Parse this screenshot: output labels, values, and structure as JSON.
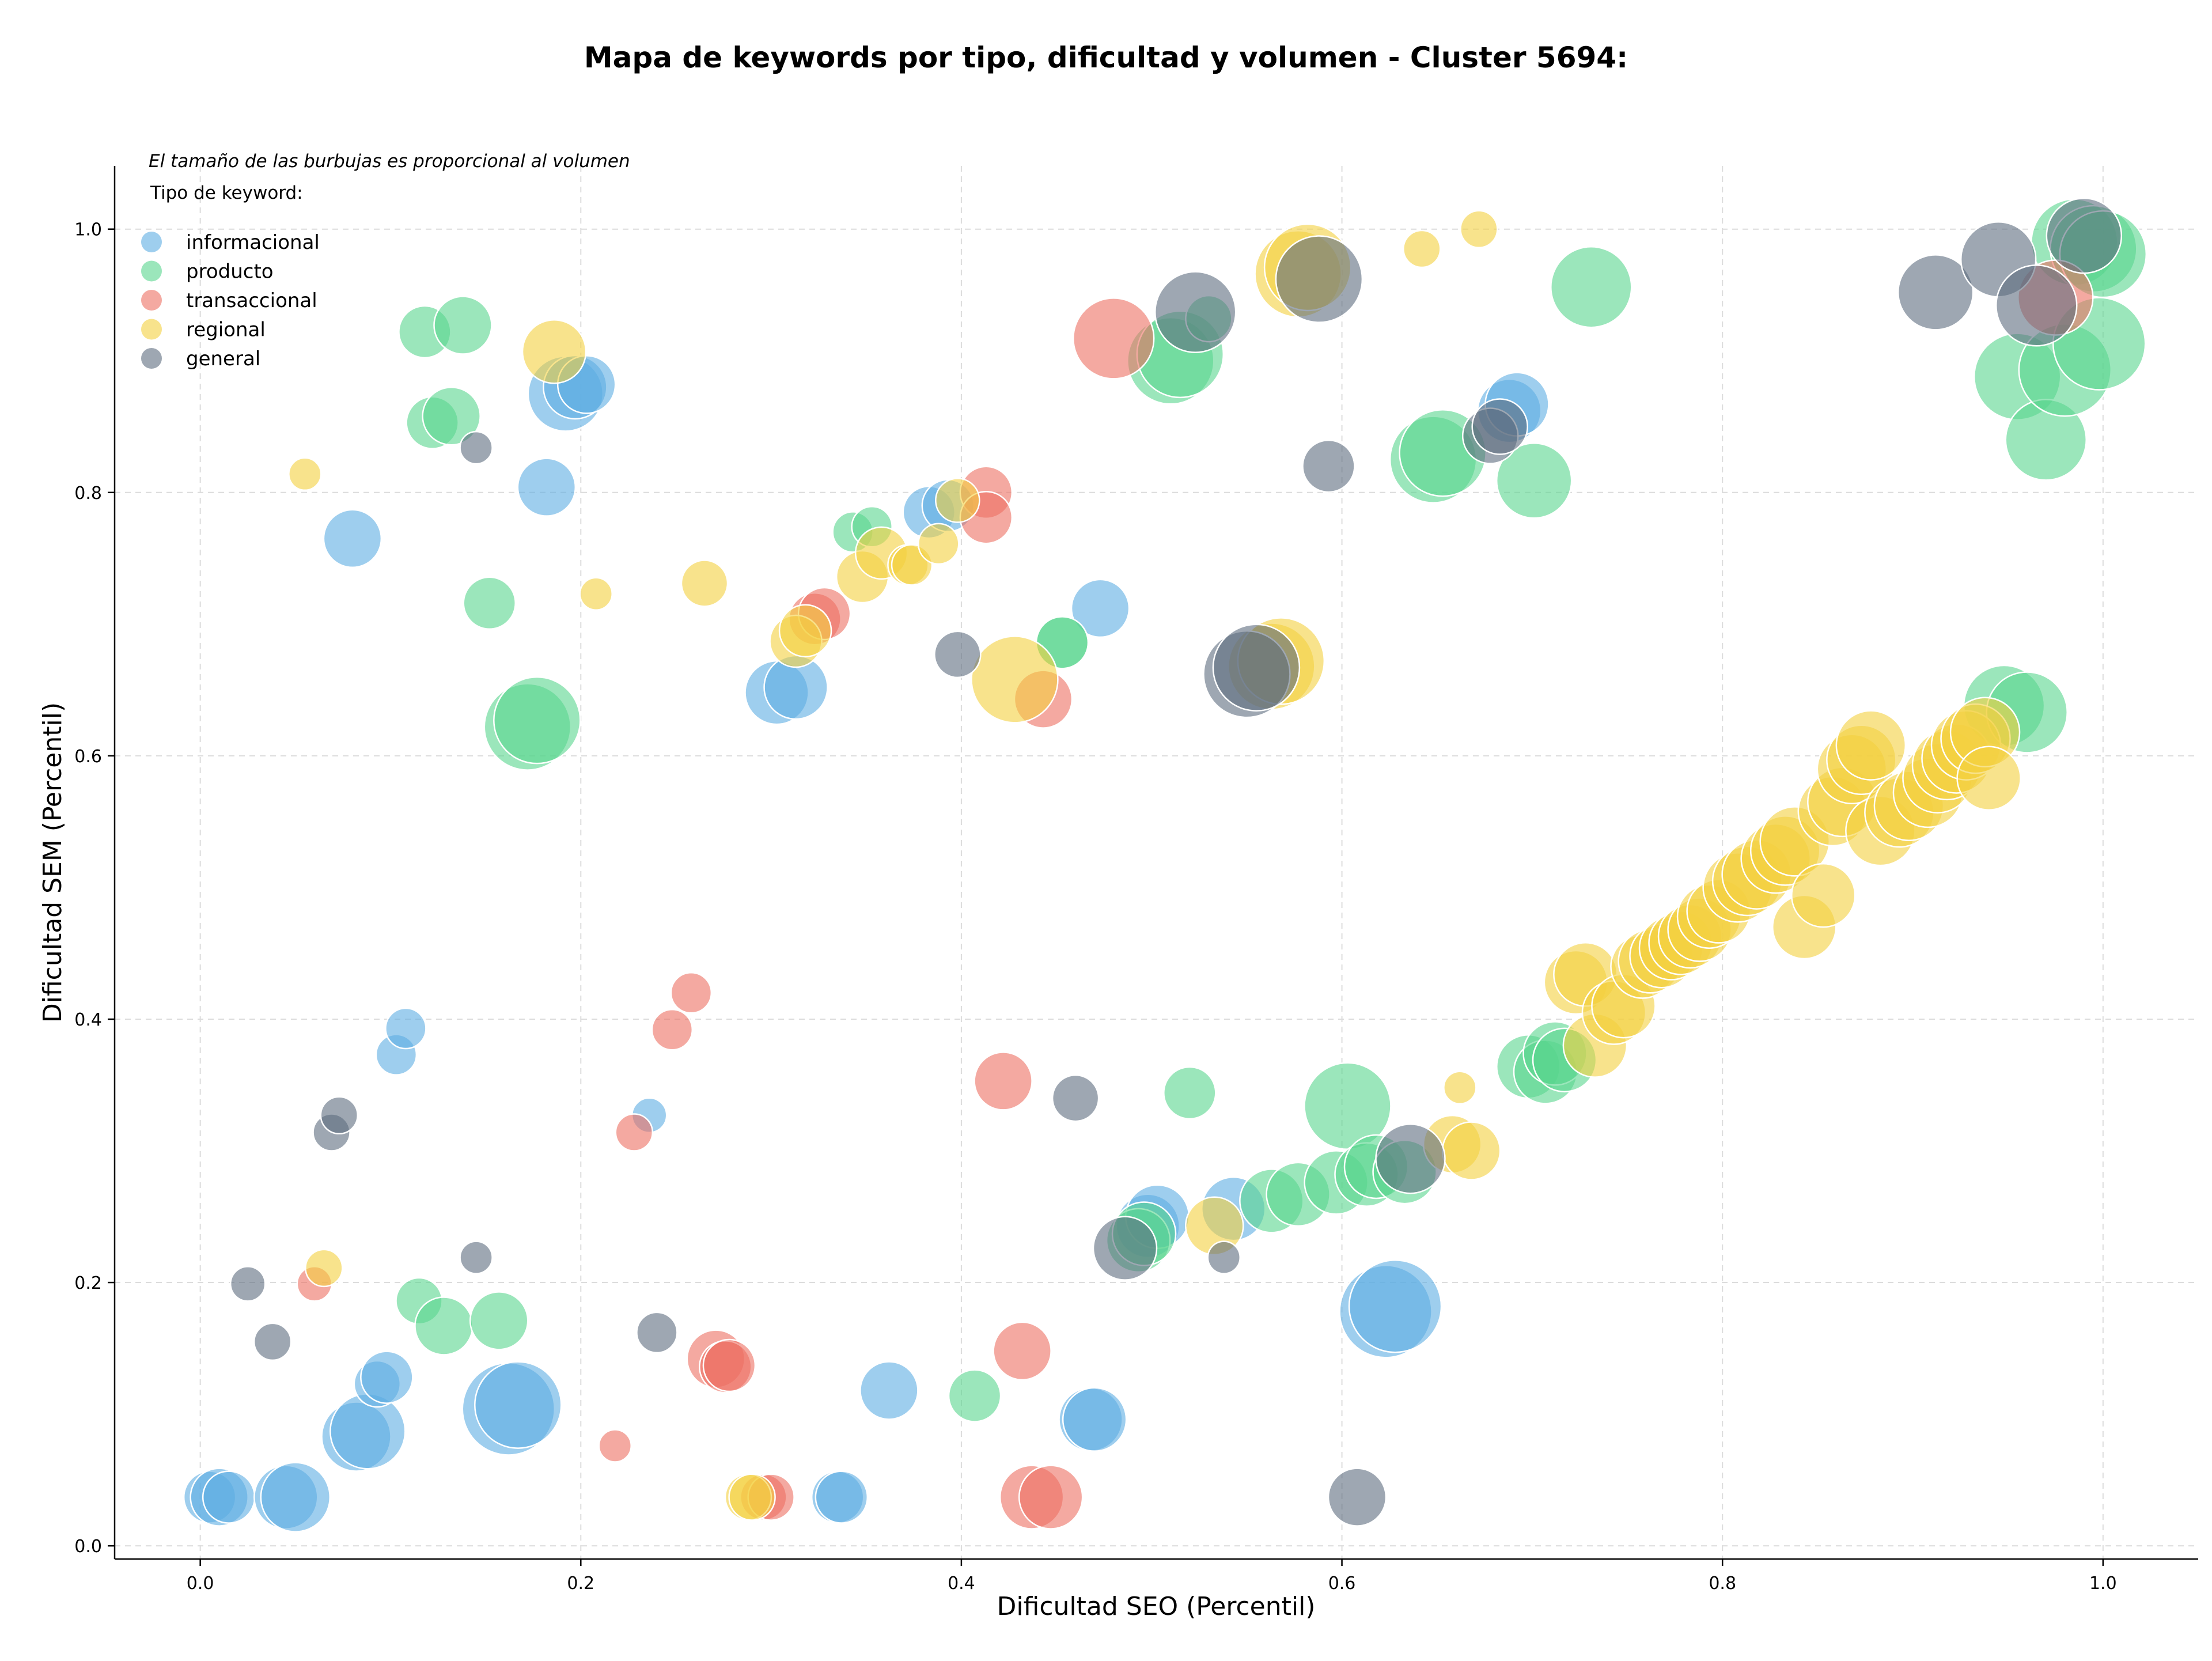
{
  "chart_data": {
    "type": "scatter",
    "title": "Mapa de keywords por tipo, dificultad y volumen - Cluster 5694:",
    "xlabel": "Dificultad SEO (Percentil)",
    "ylabel": "Dificultad SEM (Percentil)",
    "xlim": [
      -0.045,
      1.05
    ],
    "ylim": [
      -0.01,
      1.048
    ],
    "xticks": [
      "0.0",
      "0.2",
      "0.4",
      "0.6",
      "0.8",
      "1.0"
    ],
    "yticks": [
      "0.0",
      "0.2",
      "0.4",
      "0.6",
      "0.8",
      "1.0"
    ],
    "xtick_values": [
      0,
      0.2,
      0.4,
      0.6,
      0.8,
      1.0
    ],
    "ytick_values": [
      0,
      0.2,
      0.4,
      0.6,
      0.8,
      1.0
    ],
    "grid": true,
    "note": "El tamaño de las burbujas es proporcional al volumen",
    "legend_title": "Tipo de keyword:",
    "legend_position": "top-left",
    "size_encoding": "volumen (relative)",
    "series": [
      {
        "name": "informacional",
        "color": "#5dade2",
        "points": [
          [
            0.005,
            0.037,
            45
          ],
          [
            0.01,
            0.037,
            50
          ],
          [
            0.015,
            0.037,
            45
          ],
          [
            0.045,
            0.037,
            55
          ],
          [
            0.05,
            0.037,
            60
          ],
          [
            0.082,
            0.083,
            60
          ],
          [
            0.088,
            0.087,
            65
          ],
          [
            0.093,
            0.123,
            40
          ],
          [
            0.098,
            0.128,
            45
          ],
          [
            0.103,
            0.373,
            35
          ],
          [
            0.108,
            0.393,
            35
          ],
          [
            0.08,
            0.765,
            50
          ],
          [
            0.182,
            0.804,
            50
          ],
          [
            0.192,
            0.875,
            65
          ],
          [
            0.197,
            0.88,
            55
          ],
          [
            0.203,
            0.882,
            50
          ],
          [
            0.162,
            0.104,
            80
          ],
          [
            0.167,
            0.107,
            75
          ],
          [
            0.236,
            0.327,
            30
          ],
          [
            0.303,
            0.648,
            55
          ],
          [
            0.313,
            0.652,
            55
          ],
          [
            0.335,
            0.037,
            45
          ],
          [
            0.337,
            0.037,
            45
          ],
          [
            0.362,
            0.118,
            50
          ],
          [
            0.383,
            0.785,
            45
          ],
          [
            0.393,
            0.79,
            45
          ],
          [
            0.473,
            0.712,
            50
          ],
          [
            0.468,
            0.096,
            55
          ],
          [
            0.47,
            0.096,
            55
          ],
          [
            0.498,
            0.243,
            55
          ],
          [
            0.503,
            0.25,
            55
          ],
          [
            0.543,
            0.256,
            55
          ],
          [
            0.623,
            0.178,
            80
          ],
          [
            0.628,
            0.182,
            80
          ],
          [
            0.688,
            0.862,
            55
          ],
          [
            0.692,
            0.867,
            55
          ]
        ]
      },
      {
        "name": "producto",
        "color": "#58d68d",
        "points": [
          [
            0.118,
            0.922,
            45
          ],
          [
            0.138,
            0.927,
            50
          ],
          [
            0.122,
            0.853,
            45
          ],
          [
            0.132,
            0.858,
            50
          ],
          [
            0.152,
            0.716,
            45
          ],
          [
            0.172,
            0.622,
            75
          ],
          [
            0.177,
            0.627,
            75
          ],
          [
            0.115,
            0.186,
            40
          ],
          [
            0.128,
            0.167,
            50
          ],
          [
            0.157,
            0.171,
            50
          ],
          [
            0.343,
            0.77,
            35
          ],
          [
            0.353,
            0.774,
            35
          ],
          [
            0.407,
            0.114,
            45
          ],
          [
            0.453,
            0.686,
            45
          ],
          [
            0.453,
            0.686,
            45
          ],
          [
            0.51,
            0.9,
            75
          ],
          [
            0.515,
            0.905,
            75
          ],
          [
            0.52,
            0.344,
            45
          ],
          [
            0.53,
            0.932,
            40
          ],
          [
            0.563,
            0.262,
            55
          ],
          [
            0.577,
            0.267,
            55
          ],
          [
            0.597,
            0.276,
            55
          ],
          [
            0.603,
            0.334,
            75
          ],
          [
            0.613,
            0.282,
            55
          ],
          [
            0.618,
            0.288,
            55
          ],
          [
            0.633,
            0.284,
            55
          ],
          [
            0.648,
            0.825,
            75
          ],
          [
            0.653,
            0.83,
            75
          ],
          [
            0.698,
            0.364,
            55
          ],
          [
            0.707,
            0.36,
            55
          ],
          [
            0.712,
            0.374,
            55
          ],
          [
            0.717,
            0.369,
            55
          ],
          [
            0.701,
            0.809,
            65
          ],
          [
            0.731,
            0.956,
            70
          ],
          [
            0.493,
            0.232,
            55
          ],
          [
            0.496,
            0.237,
            55
          ],
          [
            0.955,
            0.888,
            75
          ],
          [
            0.97,
            0.84,
            70
          ],
          [
            0.98,
            0.893,
            80
          ],
          [
            0.985,
            0.99,
            75
          ],
          [
            0.995,
            0.985,
            75
          ],
          [
            1.0,
            0.981,
            75
          ],
          [
            0.998,
            0.913,
            80
          ],
          [
            0.948,
            0.638,
            70
          ],
          [
            0.96,
            0.633,
            70
          ]
        ]
      },
      {
        "name": "transaccional",
        "color": "#ec7063",
        "points": [
          [
            0.06,
            0.199,
            30
          ],
          [
            0.218,
            0.076,
            28
          ],
          [
            0.228,
            0.314,
            32
          ],
          [
            0.248,
            0.392,
            35
          ],
          [
            0.258,
            0.42,
            35
          ],
          [
            0.271,
            0.142,
            50
          ],
          [
            0.276,
            0.136,
            45
          ],
          [
            0.278,
            0.137,
            45
          ],
          [
            0.296,
            0.037,
            40
          ],
          [
            0.3,
            0.037,
            40
          ],
          [
            0.323,
            0.704,
            45
          ],
          [
            0.328,
            0.708,
            45
          ],
          [
            0.413,
            0.8,
            45
          ],
          [
            0.413,
            0.781,
            45
          ],
          [
            0.422,
            0.353,
            50
          ],
          [
            0.432,
            0.148,
            50
          ],
          [
            0.437,
            0.037,
            55
          ],
          [
            0.447,
            0.037,
            55
          ],
          [
            0.443,
            0.643,
            50
          ],
          [
            0.48,
            0.917,
            70
          ],
          [
            0.975,
            0.948,
            65
          ]
        ]
      },
      {
        "name": "regional",
        "color": "#f4d03f",
        "points": [
          [
            0.055,
            0.814,
            28
          ],
          [
            0.065,
            0.211,
            32
          ],
          [
            0.186,
            0.907,
            55
          ],
          [
            0.208,
            0.723,
            28
          ],
          [
            0.265,
            0.731,
            40
          ],
          [
            0.288,
            0.037,
            40
          ],
          [
            0.29,
            0.037,
            40
          ],
          [
            0.313,
            0.687,
            45
          ],
          [
            0.318,
            0.695,
            45
          ],
          [
            0.348,
            0.736,
            45
          ],
          [
            0.358,
            0.754,
            45
          ],
          [
            0.372,
            0.745,
            35
          ],
          [
            0.374,
            0.745,
            35
          ],
          [
            0.388,
            0.761,
            35
          ],
          [
            0.398,
            0.794,
            38
          ],
          [
            0.428,
            0.658,
            75
          ],
          [
            0.533,
            0.243,
            50
          ],
          [
            0.563,
            0.668,
            75
          ],
          [
            0.568,
            0.672,
            75
          ],
          [
            0.577,
            0.966,
            75
          ],
          [
            0.582,
            0.971,
            75
          ],
          [
            0.642,
            0.985,
            32
          ],
          [
            0.662,
            0.348,
            28
          ],
          [
            0.672,
            1.0,
            32
          ],
          [
            0.658,
            0.305,
            50
          ],
          [
            0.668,
            0.3,
            50
          ],
          [
            0.723,
            0.428,
            55
          ],
          [
            0.728,
            0.434,
            55
          ],
          [
            0.733,
            0.38,
            55
          ],
          [
            0.743,
            0.405,
            55
          ],
          [
            0.748,
            0.41,
            55
          ],
          [
            0.758,
            0.44,
            55
          ],
          [
            0.762,
            0.444,
            55
          ],
          [
            0.768,
            0.448,
            55
          ],
          [
            0.773,
            0.454,
            55
          ],
          [
            0.778,
            0.458,
            55
          ],
          [
            0.783,
            0.463,
            55
          ],
          [
            0.788,
            0.468,
            55
          ],
          [
            0.793,
            0.478,
            55
          ],
          [
            0.798,
            0.482,
            55
          ],
          [
            0.808,
            0.5,
            60
          ],
          [
            0.813,
            0.505,
            60
          ],
          [
            0.818,
            0.51,
            60
          ],
          [
            0.828,
            0.522,
            60
          ],
          [
            0.833,
            0.528,
            60
          ],
          [
            0.838,
            0.535,
            60
          ],
          [
            0.843,
            0.47,
            55
          ],
          [
            0.853,
            0.494,
            55
          ],
          [
            0.858,
            0.558,
            60
          ],
          [
            0.863,
            0.565,
            60
          ],
          [
            0.868,
            0.59,
            60
          ],
          [
            0.873,
            0.597,
            60
          ],
          [
            0.878,
            0.608,
            60
          ],
          [
            0.883,
            0.543,
            60
          ],
          [
            0.893,
            0.557,
            60
          ],
          [
            0.898,
            0.562,
            60
          ],
          [
            0.908,
            0.572,
            60
          ],
          [
            0.913,
            0.583,
            60
          ],
          [
            0.918,
            0.593,
            60
          ],
          [
            0.923,
            0.598,
            60
          ],
          [
            0.928,
            0.608,
            60
          ],
          [
            0.933,
            0.613,
            60
          ],
          [
            0.938,
            0.618,
            60
          ],
          [
            0.94,
            0.583,
            55
          ]
        ]
      },
      {
        "name": "general",
        "color": "#5d6d7e",
        "points": [
          [
            0.025,
            0.199,
            30
          ],
          [
            0.038,
            0.155,
            32
          ],
          [
            0.069,
            0.314,
            32
          ],
          [
            0.073,
            0.327,
            32
          ],
          [
            0.145,
            0.834,
            28
          ],
          [
            0.145,
            0.219,
            28
          ],
          [
            0.24,
            0.162,
            35
          ],
          [
            0.398,
            0.677,
            40
          ],
          [
            0.46,
            0.34,
            40
          ],
          [
            0.486,
            0.226,
            55
          ],
          [
            0.523,
            0.937,
            70
          ],
          [
            0.538,
            0.219,
            28
          ],
          [
            0.55,
            0.662,
            75
          ],
          [
            0.555,
            0.667,
            75
          ],
          [
            0.588,
            0.962,
            75
          ],
          [
            0.593,
            0.82,
            45
          ],
          [
            0.608,
            0.037,
            50
          ],
          [
            0.636,
            0.294,
            60
          ],
          [
            0.678,
            0.843,
            48
          ],
          [
            0.683,
            0.85,
            48
          ],
          [
            0.912,
            0.952,
            65
          ],
          [
            0.945,
            0.977,
            65
          ],
          [
            0.965,
            0.942,
            70
          ],
          [
            0.99,
            0.995,
            65
          ]
        ]
      }
    ]
  }
}
